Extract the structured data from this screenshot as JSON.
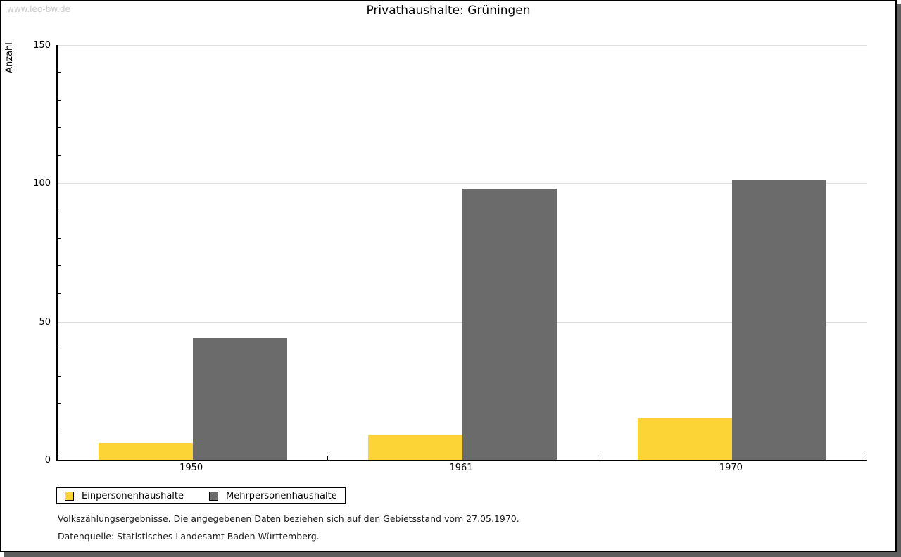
{
  "page": {
    "watermark": "www.leo-bw.de",
    "footnote_line1": "Volkszählungsergebnisse. Die angegebenen Daten beziehen sich auf den Gebietsstand vom 27.05.1970.",
    "footnote_line2": "Datenquelle: Statistisches Landesamt Baden-Württemberg."
  },
  "chart_data": {
    "type": "bar",
    "title": "Privathaushalte: Grüningen",
    "xlabel": "",
    "ylabel": "Anzahl",
    "categories": [
      "1950",
      "1961",
      "1970"
    ],
    "series": [
      {
        "name": "Einpersonenhaushalte",
        "color": "#FCD435",
        "values": [
          6,
          9,
          15
        ]
      },
      {
        "name": "Mehrpersonenhaushalte",
        "color": "#6B6B6B",
        "values": [
          44,
          98,
          101
        ]
      }
    ],
    "ylim": [
      0,
      150
    ],
    "yticks_major": [
      0,
      50,
      100,
      150
    ],
    "ytick_minor_step": 10,
    "grid": "horizontal-at-major-ticks",
    "gridline_color": "#DEDEDE",
    "legend_position": "bottom-left"
  }
}
